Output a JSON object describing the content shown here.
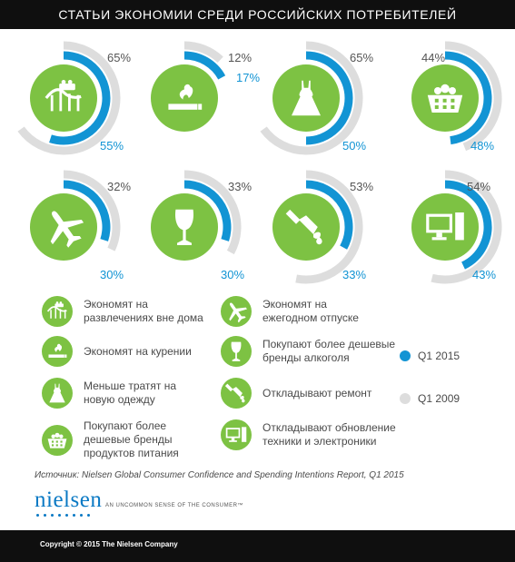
{
  "header": {
    "title": "СТАТЬИ ЭКОНОМИИ СРЕДИ РОССИЙСКИХ ПОТРЕБИТЕЛЕЙ"
  },
  "chart_data": {
    "type": "radial-bar",
    "title": "СТАТЬИ ЭКОНОМИИ СРЕДИ РОССИЙСКИХ ПОТРЕБИТЕЛЕЙ",
    "unit": "%",
    "series_names": [
      "Q1 2015",
      "Q1 2009"
    ],
    "colors": {
      "q2015": "#1294d4",
      "q2009": "#dddddd",
      "icon_bg": "#7dc243"
    },
    "items": [
      {
        "icon": "roller-coaster-icon",
        "label": "Экономят на развлечениях вне дома",
        "q2015": 55,
        "q2009": 65
      },
      {
        "icon": "cigarette-icon",
        "label": "Экономят на курении",
        "q2015": 17,
        "q2009": 12
      },
      {
        "icon": "dress-icon",
        "label": "Меньше тратят на новую одежду",
        "q2015": 50,
        "q2009": 65
      },
      {
        "icon": "grocery-basket-icon",
        "label": "Покупают более дешевые бренды продуктов питания",
        "q2015": 48,
        "q2009": 44
      },
      {
        "icon": "airplane-icon",
        "label": "Экономят на ежегодном отпуске",
        "q2015": 30,
        "q2009": 32
      },
      {
        "icon": "wine-glass-icon",
        "label": "Покупают более дешевые бренды алкоголя",
        "q2015": 30,
        "q2009": 33
      },
      {
        "icon": "paint-brush-icon",
        "label": "Откладывают ремонт",
        "q2015": 33,
        "q2009": 53
      },
      {
        "icon": "computer-icon",
        "label": "Откладывают обновление техники и электроники",
        "q2015": 43,
        "q2009": 54
      }
    ],
    "legend": [
      {
        "name": "Q1 2015",
        "color": "#1294d4"
      },
      {
        "name": "Q1 2009",
        "color": "#dddddd"
      }
    ]
  },
  "legend_text": {
    "i0": "Экономят на\nразвлечениях вне дома",
    "i1": "Экономят на курении",
    "i2": "Меньше тратят на\nновую одежду",
    "i3": "Покупают более\nдешевые бренды\nпродуктов питания",
    "i4": "Экономят на\nежегодном отпуске",
    "i5": "Покупают более дешевые\nбренды алкоголя",
    "i6": "Откладывают ремонт",
    "i7": "Откладывают обновление\nтехники и электроники"
  },
  "source": "Источник: Nielsen Global Consumer Confidence and Spending Intentions Report, Q1 2015",
  "brand": {
    "logo": "nielsen",
    "tagline": "AN UNCOMMON SENSE OF THE CONSUMER™"
  },
  "footer": {
    "copyright": "Copyright © 2015 The Nielsen Company"
  }
}
